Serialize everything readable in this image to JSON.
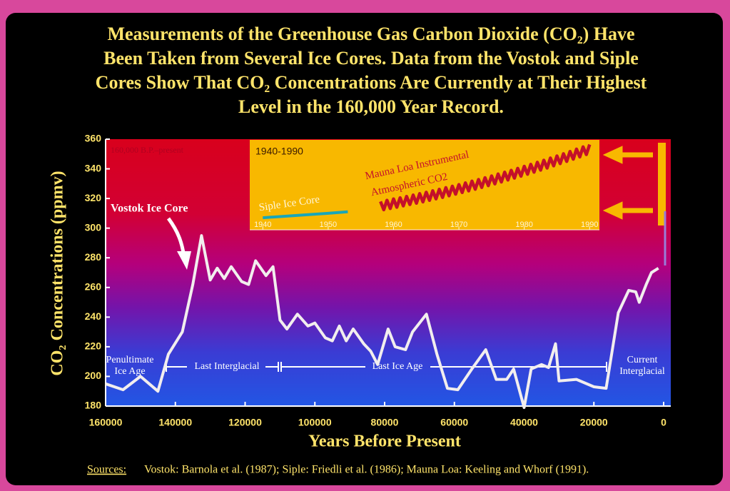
{
  "chart_data": {
    "type": "line",
    "title": [
      "Measurements of the Greenhouse Gas Carbon Dioxide (CO₂) Have",
      "Been Taken from Several Ice Cores.  Data from the Vostok and Siple",
      "Cores Show That CO₂ Concentrations Are Currently at Their Highest",
      "Level in the 160,000 Year Record."
    ],
    "x_label": "Years Before Present",
    "y_label": "CO₂ Concentrations (ppmv)",
    "xlim": [
      160000,
      0
    ],
    "ylim": [
      180,
      360
    ],
    "xticks": [
      160000,
      140000,
      120000,
      100000,
      80000,
      60000,
      40000,
      20000,
      0
    ],
    "yticks": [
      180,
      200,
      220,
      240,
      260,
      280,
      300,
      320,
      340,
      360
    ],
    "range_label": "160,000 B.P.–present",
    "series": [
      {
        "name": "Vostok Ice Core",
        "color": "#f2eeee",
        "x": [
          160000,
          155000,
          150000,
          145000,
          142000,
          138000,
          135000,
          132500,
          130000,
          128000,
          126000,
          124000,
          121000,
          119000,
          117000,
          114000,
          112000,
          110000,
          108000,
          105000,
          102000,
          100000,
          97000,
          95000,
          93000,
          91000,
          89000,
          86000,
          84000,
          82000,
          79000,
          77000,
          74000,
          72000,
          68000,
          65000,
          62000,
          59000,
          55000,
          51000,
          48000,
          45000,
          43000,
          40000,
          38000,
          35000,
          33000,
          31000,
          30000,
          25000,
          20000,
          16500,
          13000,
          10000,
          8000,
          7000,
          5000,
          3500,
          1500
        ],
        "values": [
          195,
          191,
          200,
          190,
          215,
          230,
          262,
          295,
          265,
          273,
          266,
          274,
          264,
          262,
          278,
          268,
          274,
          238,
          232,
          242,
          234,
          236,
          226,
          224,
          234,
          224,
          232,
          222,
          217,
          208,
          232,
          220,
          218,
          230,
          242,
          215,
          192,
          191,
          205,
          218,
          198,
          198,
          205,
          179,
          205,
          208,
          206,
          222,
          197,
          198,
          193,
          192,
          243,
          258,
          257,
          250,
          262,
          270,
          273
        ]
      }
    ],
    "periods": [
      [
        "Penultimate",
        "Ice Age"
      ],
      [
        "Last Interglacial"
      ],
      [
        "Last Ice Age"
      ],
      [
        "Current",
        "Interglacial"
      ]
    ],
    "inset": {
      "title": "1940-1990",
      "xlim": [
        1938,
        1991.5
      ],
      "xticks": [
        1940,
        1950,
        1960,
        1970,
        1980,
        1990
      ],
      "series": [
        {
          "label": [
            "Siple Ice Core"
          ],
          "color": "#1aa6b8",
          "x": [
            1940,
            1945,
            1950,
            1953
          ],
          "values": [
            307,
            308.5,
            310,
            311
          ]
        },
        {
          "label": [
            "Mauna Loa Instrumental",
            "Atmospheric CO2"
          ],
          "color": "#c4102a",
          "x": [
            1958,
            1958.5,
            1959,
            1959.5,
            1960,
            1960.5,
            1961,
            1961.5,
            1962,
            1962.5,
            1963,
            1963.5,
            1964,
            1964.5,
            1965,
            1965.5,
            1966,
            1966.5,
            1967,
            1967.5,
            1968,
            1968.5,
            1969,
            1969.5,
            1970,
            1970.5,
            1971,
            1971.5,
            1972,
            1972.5,
            1973,
            1973.5,
            1974,
            1974.5,
            1975,
            1975.5,
            1976,
            1976.5,
            1977,
            1977.5,
            1978,
            1978.5,
            1979,
            1979.5,
            1980,
            1980.5,
            1981,
            1981.5,
            1982,
            1982.5,
            1983,
            1983.5,
            1984,
            1984.5,
            1985,
            1985.5,
            1986,
            1986.5,
            1987,
            1987.5,
            1988,
            1988.5,
            1989,
            1989.5,
            1990
          ],
          "values": [
            318,
            312.4,
            318.8,
            313.2,
            319.7,
            314.1,
            320.5,
            315,
            321.4,
            315.9,
            322.3,
            316.8,
            323.3,
            317.7,
            324.2,
            318.7,
            325.2,
            319.7,
            326.2,
            320.7,
            327.3,
            321.8,
            328.3,
            322.9,
            329.4,
            324,
            330.5,
            325.1,
            331.7,
            326.2,
            332.8,
            327.4,
            334,
            328.6,
            335.2,
            329.8,
            336.5,
            331.1,
            337.7,
            332.4,
            339,
            333.7,
            340.3,
            335,
            341.7,
            336.3,
            343,
            337.7,
            344.4,
            339.1,
            345.8,
            340.5,
            347.3,
            342,
            348.7,
            343.5,
            350.2,
            345,
            351.7,
            346.5,
            353.3,
            348,
            354.8,
            349.6,
            356.4
          ]
        }
      ]
    },
    "sources_label": "Sources:",
    "sources": "Vostok:  Barnola et al. (1987);  Siple:  Friedli et al. (1986);  Mauna Loa:  Keeling and Whorf (1991)."
  }
}
